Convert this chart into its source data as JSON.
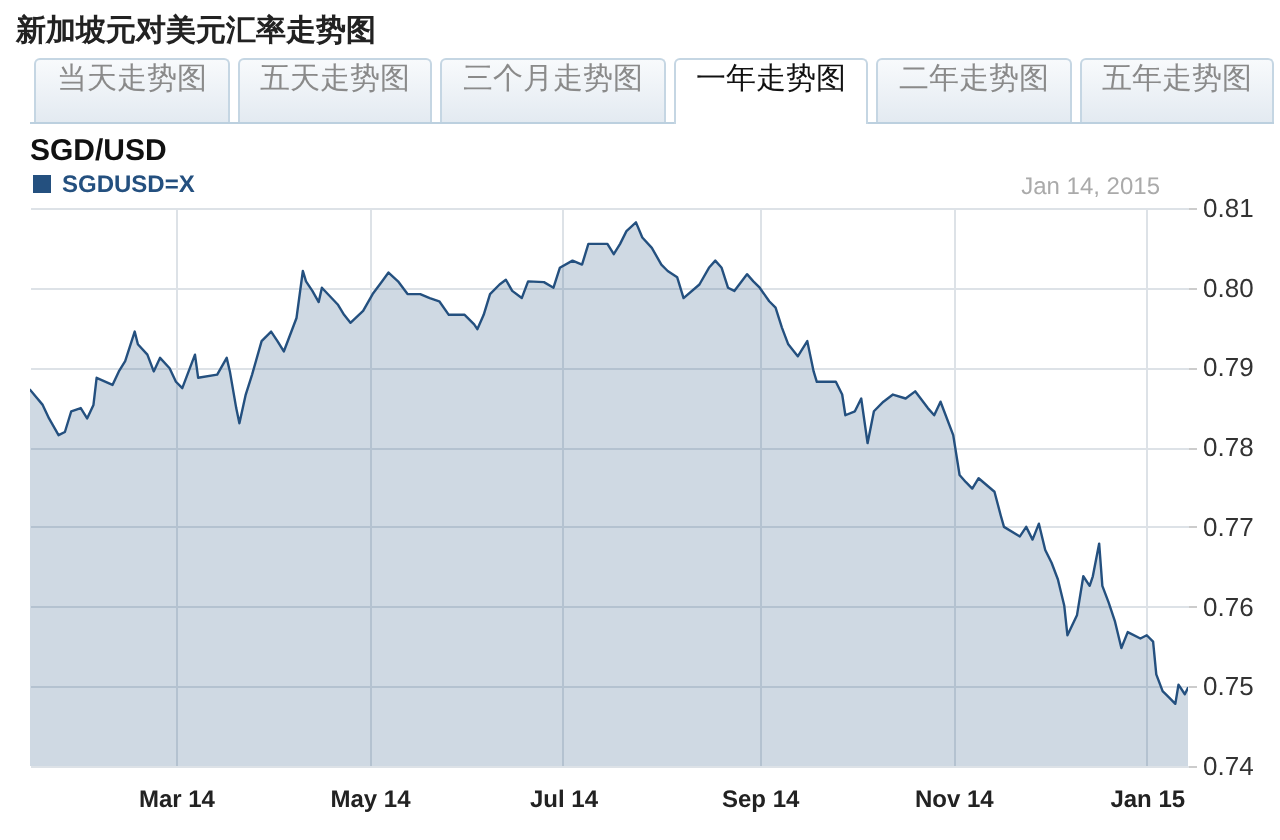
{
  "chart_data": {
    "type": "area",
    "title": "新加坡元对美元汇率走势图",
    "subtitle": "SGD/USD",
    "annotations": [
      "当天走势图",
      "五天走势图",
      "三个月走势图",
      "一年走势图",
      "二年走势图",
      "五年走势图",
      "Jan 14, 2015"
    ],
    "x": [
      "2014-01-14",
      "2014-01-18",
      "2014-01-20",
      "2014-01-23",
      "2014-01-25",
      "2014-01-27",
      "2014-01-30",
      "2014-02-01",
      "2014-02-03",
      "2014-02-04",
      "2014-02-09",
      "2014-02-11",
      "2014-02-13",
      "2014-02-16",
      "2014-02-17",
      "2014-02-20",
      "2014-02-22",
      "2014-02-24",
      "2014-02-27",
      "2014-03-01",
      "2014-03-03",
      "2014-03-07",
      "2014-03-08",
      "2014-03-14",
      "2014-03-17",
      "2014-03-18",
      "2014-03-20",
      "2014-03-21",
      "2014-03-23",
      "2014-03-25",
      "2014-03-28",
      "2014-03-31",
      "2014-04-02",
      "2014-04-04",
      "2014-04-06",
      "2014-04-08",
      "2014-04-10",
      "2014-04-11",
      "2014-04-13",
      "2014-04-15",
      "2014-04-16",
      "2014-04-21",
      "2014-04-23",
      "2014-04-25",
      "2014-04-29",
      "2014-05-02",
      "2014-05-05",
      "2014-05-07",
      "2014-05-10",
      "2014-05-13",
      "2014-05-17",
      "2014-05-20",
      "2014-05-23",
      "2014-05-26",
      "2014-05-31",
      "2014-06-03",
      "2014-06-04",
      "2014-06-06",
      "2014-06-08",
      "2014-06-11",
      "2014-06-13",
      "2014-06-15",
      "2014-06-18",
      "2014-06-20",
      "2014-06-25",
      "2014-06-28",
      "2014-06-30",
      "2014-07-04",
      "2014-07-07",
      "2014-07-09",
      "2014-07-15",
      "2014-07-17",
      "2014-07-19",
      "2014-07-21",
      "2014-07-24",
      "2014-07-26",
      "2014-07-29",
      "2014-08-01",
      "2014-08-03",
      "2014-08-06",
      "2014-08-08",
      "2014-08-13",
      "2014-08-16",
      "2014-08-18",
      "2014-08-20",
      "2014-08-22",
      "2014-08-24",
      "2014-08-28",
      "2014-08-30",
      "2014-09-01",
      "2014-09-04",
      "2014-09-06",
      "2014-09-08",
      "2014-09-10",
      "2014-09-13",
      "2014-09-16",
      "2014-09-18",
      "2014-09-19",
      "2014-09-25",
      "2014-09-27",
      "2014-09-28",
      "2014-10-01",
      "2014-10-03",
      "2014-10-05",
      "2014-10-07",
      "2014-10-10",
      "2014-10-13",
      "2014-10-17",
      "2014-10-20",
      "2014-10-24",
      "2014-10-26",
      "2014-10-28",
      "2014-11-01",
      "2014-11-03",
      "2014-11-05",
      "2014-11-07",
      "2014-11-09",
      "2014-11-14",
      "2014-11-16",
      "2014-11-17",
      "2014-11-22",
      "2014-11-24",
      "2014-11-26",
      "2014-11-28",
      "2014-11-30",
      "2014-12-02",
      "2014-12-04",
      "2014-12-06",
      "2014-12-07",
      "2014-12-10",
      "2014-12-12",
      "2014-12-14",
      "2014-12-15",
      "2014-12-17",
      "2014-12-18",
      "2014-12-20",
      "2014-12-22",
      "2014-12-24",
      "2014-12-26",
      "2014-12-30",
      "2015-01-01",
      "2015-01-03",
      "2015-01-04",
      "2015-01-06",
      "2015-01-08",
      "2015-01-10",
      "2015-01-11",
      "2015-01-13",
      "2015-01-14"
    ],
    "series": [
      {
        "name": "SGDUSD=X",
        "color": "#24507f",
        "values": [
          0.7872,
          0.7853,
          0.7836,
          0.7815,
          0.7819,
          0.7845,
          0.7849,
          0.7836,
          0.7853,
          0.7887,
          0.7878,
          0.7895,
          0.7908,
          0.7945,
          0.7929,
          0.7916,
          0.7895,
          0.7912,
          0.7899,
          0.7882,
          0.7874,
          0.7916,
          0.7887,
          0.7891,
          0.7912,
          0.7895,
          0.7849,
          0.783,
          0.7866,
          0.7891,
          0.7933,
          0.7945,
          0.7933,
          0.792,
          0.7941,
          0.7962,
          0.8021,
          0.8008,
          0.7996,
          0.7982,
          0.8,
          0.7979,
          0.7966,
          0.7956,
          0.7971,
          0.7992,
          0.8008,
          0.8019,
          0.8008,
          0.7992,
          0.7992,
          0.7987,
          0.7983,
          0.7966,
          0.7966,
          0.7954,
          0.7948,
          0.7966,
          0.7992,
          0.8004,
          0.801,
          0.7996,
          0.7987,
          0.8008,
          0.8007,
          0.8,
          0.8025,
          0.8034,
          0.8029,
          0.8055,
          0.8055,
          0.8042,
          0.8055,
          0.8071,
          0.8082,
          0.8063,
          0.805,
          0.8029,
          0.8021,
          0.8013,
          0.7987,
          0.8004,
          0.8025,
          0.8034,
          0.8025,
          0.8,
          0.7996,
          0.8017,
          0.8008,
          0.8,
          0.7983,
          0.7975,
          0.795,
          0.7929,
          0.7914,
          0.7933,
          0.7895,
          0.7882,
          0.7882,
          0.7866,
          0.784,
          0.7845,
          0.7861,
          0.7805,
          0.7845,
          0.7857,
          0.7866,
          0.7861,
          0.787,
          0.7849,
          0.784,
          0.7857,
          0.7815,
          0.7765,
          0.7756,
          0.7748,
          0.7761,
          0.7744,
          0.7714,
          0.77,
          0.7688,
          0.77,
          0.7684,
          0.7704,
          0.7671,
          0.7655,
          0.7634,
          0.7601,
          0.7564,
          0.7589,
          0.7638,
          0.7626,
          0.7638,
          0.7679,
          0.7626,
          0.7605,
          0.7581,
          0.7548,
          0.7568,
          0.756,
          0.7564,
          0.7556,
          0.7515,
          0.7494,
          0.7486,
          0.7478,
          0.7502,
          0.749,
          0.7498
        ]
      }
    ],
    "xlim": [
      "2014-01-14",
      "2015-01-14"
    ],
    "xticks": [
      {
        "value": "2014-03-01",
        "label": "Mar 14"
      },
      {
        "value": "2014-05-01",
        "label": "May 14"
      },
      {
        "value": "2014-07-01",
        "label": "Jul 14"
      },
      {
        "value": "2014-09-01",
        "label": "Sep 14"
      },
      {
        "value": "2014-11-01",
        "label": "Nov 14"
      },
      {
        "value": "2015-01-01",
        "label": "Jan 15"
      }
    ],
    "ylim": [
      0.74,
      0.81
    ],
    "yticks": [
      0.74,
      0.75,
      0.76,
      0.77,
      0.78,
      0.79,
      {
        "value": 0.8,
        "label": "0.80"
      },
      0.81
    ],
    "grid": true,
    "legend": "top left"
  }
}
